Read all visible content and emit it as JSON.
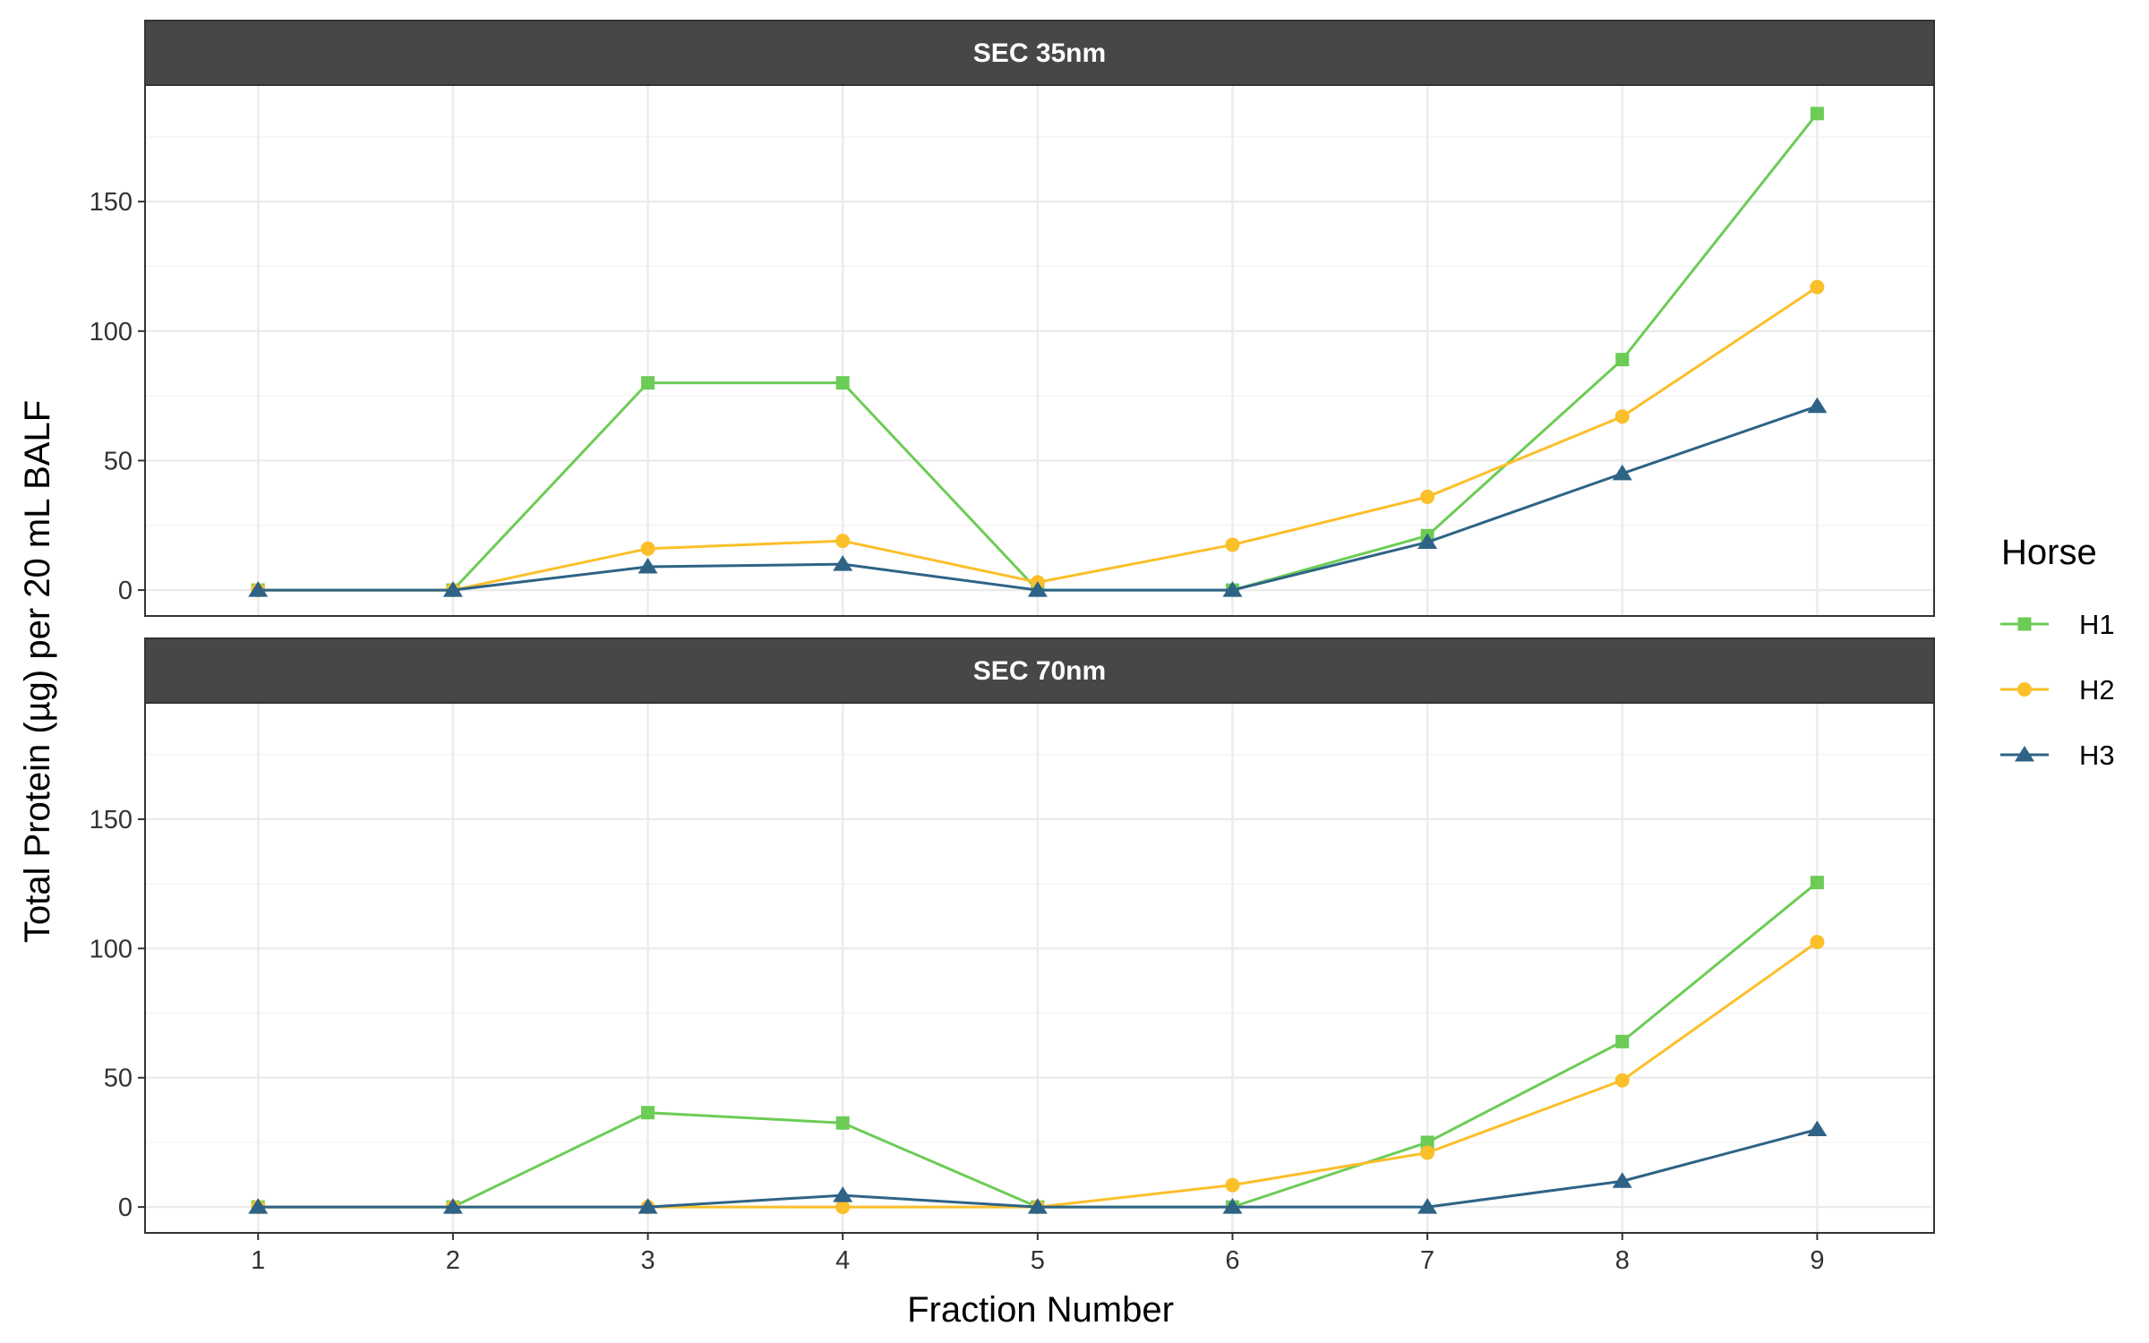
{
  "chart_data": {
    "type": "line",
    "xlabel": "Fraction Number",
    "ylabel": "Total Protein (µg) per 20 mL BALF",
    "x": [
      1,
      2,
      3,
      4,
      5,
      6,
      7,
      8,
      9
    ],
    "x_ticks": [
      "1",
      "2",
      "3",
      "4",
      "5",
      "6",
      "7",
      "8",
      "9"
    ],
    "xlim": [
      0.42,
      9.6
    ],
    "ylim": [
      -10,
      195
    ],
    "y_ticks": [
      0,
      50,
      100,
      150
    ],
    "grid": true,
    "legend": {
      "title": "Horse",
      "position": "right",
      "entries": [
        {
          "name": "H1",
          "color": "#6ccc56",
          "marker": "square"
        },
        {
          "name": "H2",
          "color": "#fbbf2a",
          "marker": "circle"
        },
        {
          "name": "H3",
          "color": "#2e6386",
          "marker": "triangle"
        }
      ]
    },
    "panels": [
      {
        "title": "SEC 35nm",
        "series": [
          {
            "name": "H1",
            "values": [
              0,
              0,
              80,
              80,
              0,
              0,
              21,
              89,
              184
            ]
          },
          {
            "name": "H2",
            "values": [
              0,
              0,
              16,
              19,
              3,
              17.5,
              36,
              67,
              117
            ]
          },
          {
            "name": "H3",
            "values": [
              0,
              0,
              9,
              10,
              0,
              0,
              18.5,
              45,
              71
            ]
          }
        ]
      },
      {
        "title": "SEC 70nm",
        "series": [
          {
            "name": "H1",
            "values": [
              0,
              0,
              36.5,
              32.5,
              0,
              0,
              25,
              64,
              125.5
            ]
          },
          {
            "name": "H2",
            "values": [
              0,
              0,
              0,
              0,
              0,
              8.5,
              21,
              49,
              102.5
            ]
          },
          {
            "name": "H3",
            "values": [
              0,
              0,
              0,
              4.5,
              0,
              0,
              0,
              10,
              30
            ]
          }
        ]
      }
    ]
  }
}
